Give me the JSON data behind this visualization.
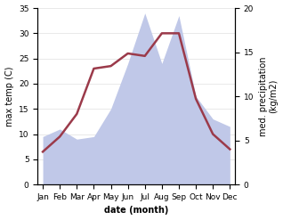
{
  "months": [
    "Jan",
    "Feb",
    "Mar",
    "Apr",
    "May",
    "Jun",
    "Jul",
    "Aug",
    "Sep",
    "Oct",
    "Nov",
    "Dec"
  ],
  "temp": [
    6.5,
    9.5,
    14.0,
    23.0,
    23.5,
    26.0,
    25.5,
    30.0,
    30.0,
    17.0,
    10.0,
    7.0
  ],
  "precip": [
    9.5,
    11.0,
    9.0,
    9.5,
    15.0,
    24.0,
    34.0,
    24.0,
    33.5,
    17.5,
    13.0,
    11.5
  ],
  "temp_color": "#9b3a4a",
  "precip_fill_color": "#c0c8e8",
  "temp_ylim": [
    0,
    35
  ],
  "precip_ylim": [
    0,
    35
  ],
  "right_ylim": [
    0,
    20
  ],
  "xlabel": "date (month)",
  "ylabel_left": "max temp (C)",
  "ylabel_right": "med. precipitation\n(kg/m2)",
  "bg_color": "#ffffff",
  "temp_linewidth": 1.8,
  "label_fontsize": 7,
  "tick_fontsize": 6.5,
  "left_yticks": [
    0,
    5,
    10,
    15,
    20,
    25,
    30,
    35
  ],
  "right_yticks": [
    0,
    5,
    10,
    15,
    20
  ]
}
